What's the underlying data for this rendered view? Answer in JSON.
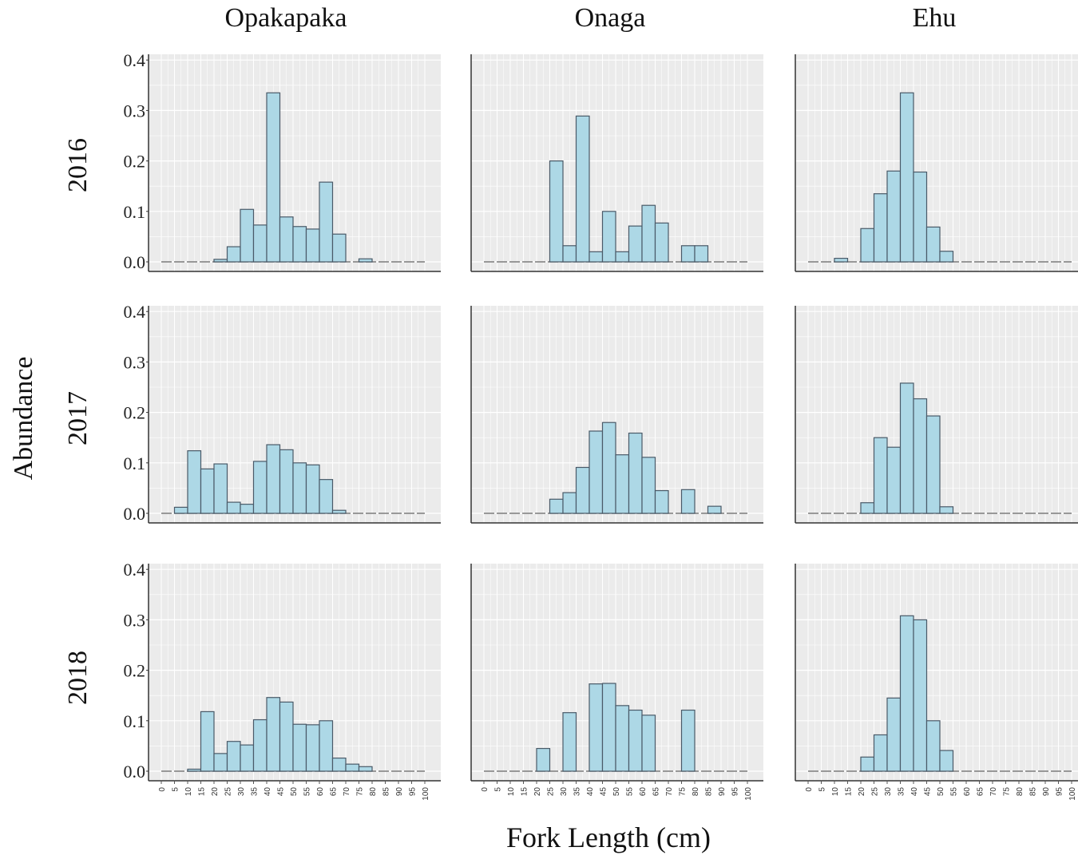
{
  "figure": {
    "xlabel": "Fork Length (cm)",
    "ylabel": "Abundance",
    "columns": [
      "Opakapaka",
      "Onaga",
      "Ehu"
    ],
    "rows": [
      "2016",
      "2017",
      "2018"
    ]
  },
  "colors": {
    "bar_fill": "#add8e6",
    "bar_stroke": "#4a5a68",
    "panel_bg": "#ebebeb",
    "grid": "#ffffff",
    "zero_line": "#7a7a7a"
  },
  "chart_data": {
    "type": "bar",
    "xlabel": "Fork Length (cm)",
    "ylabel": "Abundance",
    "ylim": [
      0,
      0.4
    ],
    "y_ticks": [
      "0.0",
      "0.1",
      "0.2",
      "0.3",
      "0.4"
    ],
    "x_ticks": [
      "0",
      "5",
      "10",
      "15",
      "20",
      "25",
      "30",
      "35",
      "40",
      "45",
      "50",
      "55",
      "60",
      "65",
      "70",
      "75",
      "80",
      "85",
      "90",
      "95",
      "100"
    ],
    "bins": [
      0,
      5,
      10,
      15,
      20,
      25,
      30,
      35,
      40,
      45,
      50,
      55,
      60,
      65,
      70,
      75,
      80,
      85,
      90,
      95,
      100
    ],
    "panels": [
      {
        "species": "Opakapaka",
        "year": "2016",
        "values": [
          0,
          0,
          0,
          0,
          0.005,
          0.03,
          0.104,
          0.073,
          0.335,
          0.089,
          0.07,
          0.065,
          0.158,
          0.055,
          0,
          0.006,
          0,
          0,
          0,
          0,
          0
        ]
      },
      {
        "species": "Onaga",
        "year": "2016",
        "values": [
          0,
          0,
          0,
          0,
          0,
          0.2,
          0.032,
          0.289,
          0.02,
          0.1,
          0.02,
          0.071,
          0.112,
          0.077,
          0,
          0.032,
          0.032,
          0,
          0,
          0,
          0
        ]
      },
      {
        "species": "Ehu",
        "year": "2016",
        "values": [
          0,
          0,
          0.007,
          0,
          0.066,
          0.135,
          0.18,
          0.335,
          0.178,
          0.069,
          0.021,
          0,
          0,
          0,
          0,
          0,
          0,
          0,
          0,
          0,
          0
        ]
      },
      {
        "species": "Opakapaka",
        "year": "2017",
        "values": [
          0,
          0.012,
          0.124,
          0.088,
          0.098,
          0.022,
          0.018,
          0.103,
          0.136,
          0.126,
          0.1,
          0.096,
          0.067,
          0.006,
          0,
          0,
          0,
          0,
          0,
          0,
          0
        ]
      },
      {
        "species": "Onaga",
        "year": "2017",
        "values": [
          0,
          0,
          0,
          0,
          0,
          0.028,
          0.041,
          0.091,
          0.163,
          0.18,
          0.116,
          0.159,
          0.111,
          0.045,
          0,
          0.047,
          0,
          0.014,
          0,
          0,
          0
        ]
      },
      {
        "species": "Ehu",
        "year": "2017",
        "values": [
          0,
          0,
          0,
          0,
          0.021,
          0.15,
          0.131,
          0.258,
          0.227,
          0.193,
          0.013,
          0,
          0,
          0,
          0,
          0,
          0,
          0,
          0,
          0,
          0
        ]
      },
      {
        "species": "Opakapaka",
        "year": "2018",
        "values": [
          0,
          0,
          0.004,
          0.118,
          0.035,
          0.059,
          0.052,
          0.102,
          0.146,
          0.137,
          0.093,
          0.092,
          0.1,
          0.026,
          0.014,
          0.009,
          0,
          0,
          0,
          0,
          0
        ]
      },
      {
        "species": "Onaga",
        "year": "2018",
        "values": [
          0,
          0,
          0,
          0,
          0.045,
          0,
          0.116,
          0,
          0.173,
          0.174,
          0.13,
          0.121,
          0.111,
          0,
          0,
          0.121,
          0,
          0,
          0,
          0,
          0
        ]
      },
      {
        "species": "Ehu",
        "year": "2018",
        "values": [
          0,
          0,
          0,
          0,
          0.028,
          0.072,
          0.145,
          0.308,
          0.3,
          0.1,
          0.041,
          0,
          0,
          0,
          0,
          0,
          0,
          0,
          0,
          0,
          0
        ]
      }
    ]
  }
}
